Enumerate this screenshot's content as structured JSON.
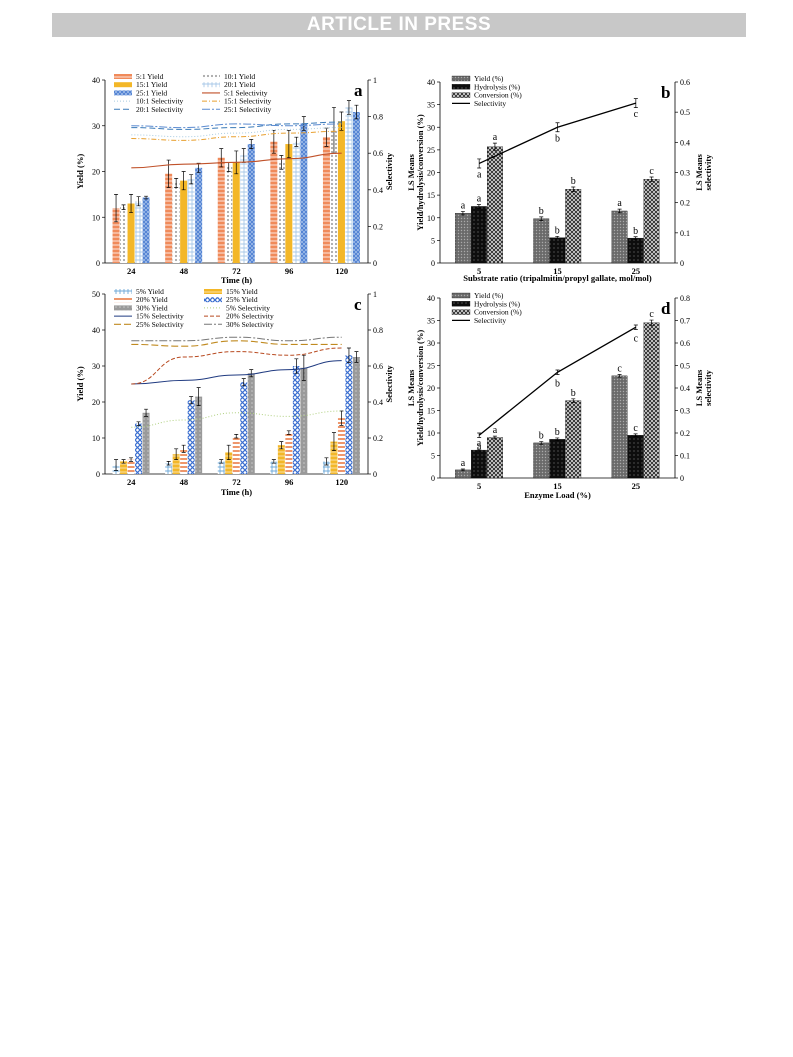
{
  "header": {
    "banner": "ARTICLE IN PRESS"
  },
  "colors": {
    "bar_5to1": "#f08a5a",
    "bar_10to1": "#c9c9c9",
    "bar_15to1": "#f3b728",
    "bar_20to1": "#a8c8e8",
    "bar_25to1": "#4f7fd2",
    "sel_5": "#c0522a",
    "sel_10": "#a8cbe0",
    "sel_15": "#e8a030",
    "sel_20": "#3a7ab8",
    "sel_25": "#5a8ad0"
  },
  "chart_data": [
    {
      "panel": "a",
      "type": "bar",
      "categories": [
        "24",
        "48",
        "72",
        "96",
        "120"
      ],
      "xlabel": "Time (h)",
      "ylabel": "Yield (%)",
      "ylabel2": "Selectivity",
      "ylim": [
        0,
        40
      ],
      "yticks": [
        "0",
        "10",
        "20",
        "30",
        "40"
      ],
      "y2lim": [
        0,
        1
      ],
      "y2ticks": [
        "0",
        "0.2",
        "0.4",
        "0.6",
        "0.8",
        "1"
      ],
      "series": [
        {
          "name": "5:1 Yield",
          "values": [
            12,
            19.5,
            23,
            26.5,
            27.5
          ],
          "errors": [
            3,
            3,
            2,
            2.5,
            2
          ]
        },
        {
          "name": "10:1 Yield",
          "values": [
            12.2,
            17.5,
            21,
            22,
            29
          ],
          "errors": [
            0.5,
            1,
            1,
            1.5,
            5
          ]
        },
        {
          "name": "15:1 Yield",
          "values": [
            13,
            18,
            22,
            26,
            31
          ],
          "errors": [
            2,
            2,
            2.5,
            3,
            2
          ]
        },
        {
          "name": "20:1 Yield",
          "values": [
            13.5,
            18.3,
            23.5,
            26.5,
            34
          ],
          "errors": [
            1,
            1,
            1.5,
            1,
            1.5
          ]
        },
        {
          "name": "25:1 Yield",
          "values": [
            14.3,
            20.8,
            26,
            30.5,
            33
          ],
          "errors": [
            0.3,
            1,
            1,
            1.5,
            1.5
          ]
        }
      ],
      "lines": [
        {
          "name": "5:1 Selectivity",
          "values": [
            0.52,
            0.54,
            0.55,
            0.57,
            0.6
          ]
        },
        {
          "name": "10:1 Selectivity",
          "values": [
            0.7,
            0.69,
            0.71,
            0.73,
            0.74
          ]
        },
        {
          "name": "15:1 Selectivity",
          "values": [
            0.68,
            0.67,
            0.69,
            0.71,
            0.72
          ]
        },
        {
          "name": "20:1 Selectivity",
          "values": [
            0.74,
            0.73,
            0.74,
            0.76,
            0.77
          ]
        },
        {
          "name": "25:1 Selectivity",
          "values": [
            0.75,
            0.74,
            0.76,
            0.75,
            0.76
          ]
        }
      ],
      "panel_label": "a"
    },
    {
      "panel": "b",
      "type": "bar",
      "categories": [
        "5",
        "15",
        "25"
      ],
      "xlabel": "Substrate ratio (tripalmitin/propyl gallate, mol/mol)",
      "ylabel": "LS Means",
      "ylabel_line2": "Yield/hydrolysis/conversion (%)",
      "ylabel2": "LS Means",
      "ylabel2_line2": "selectivity",
      "ylim": [
        0,
        40
      ],
      "yticks": [
        "0",
        "5",
        "10",
        "15",
        "20",
        "25",
        "30",
        "35",
        "40"
      ],
      "y2lim": [
        0,
        0.6
      ],
      "y2ticks": [
        "0",
        "0.1",
        "0.2",
        "0.3",
        "0.4",
        "0.5",
        "0.6"
      ],
      "series": [
        {
          "name": "Yield (%)",
          "values": [
            11,
            9.8,
            11.5
          ],
          "errors": [
            0.4,
            0.4,
            0.4
          ],
          "letters": [
            "a",
            "b",
            "a"
          ]
        },
        {
          "name": "Hydrolysis (%)",
          "values": [
            12.5,
            5.6,
            5.5
          ],
          "errors": [
            0.4,
            0.3,
            0.3
          ],
          "letters": [
            "a",
            "b",
            "b"
          ]
        },
        {
          "name": "Conversion (%)",
          "values": [
            25.7,
            16.3,
            18.5
          ],
          "errors": [
            0.8,
            0.5,
            0.5
          ],
          "letters": [
            "a",
            "b",
            "c"
          ]
        }
      ],
      "lines": [
        {
          "name": "Selectivity",
          "values": [
            0.33,
            0.45,
            0.53
          ],
          "errors": [
            0.015,
            0.015,
            0.015
          ],
          "letters": [
            "a",
            "b",
            "c"
          ]
        }
      ],
      "panel_label": "b"
    },
    {
      "panel": "c",
      "type": "bar",
      "categories": [
        "24",
        "48",
        "72",
        "96",
        "120"
      ],
      "xlabel": "Time (h)",
      "ylabel": "Yield (%)",
      "ylabel2": "Selectivity",
      "ylim": [
        0,
        50
      ],
      "yticks": [
        "0",
        "10",
        "20",
        "30",
        "40",
        "50"
      ],
      "y2lim": [
        0,
        1
      ],
      "y2ticks": [
        "0",
        "0.2",
        "0.4",
        "0.6",
        "0.8",
        "1"
      ],
      "series": [
        {
          "name": "5% Yield",
          "values": [
            2.5,
            3,
            3.5,
            3.5,
            3.5
          ],
          "errors": [
            1.5,
            0.5,
            0.5,
            0.5,
            1
          ]
        },
        {
          "name": "15% Yield",
          "values": [
            3.5,
            5.5,
            6,
            8,
            9
          ],
          "errors": [
            0.5,
            1.5,
            2,
            1,
            2.5
          ]
        },
        {
          "name": "20% Yield",
          "values": [
            4,
            7,
            10.5,
            11.5,
            15.5
          ],
          "errors": [
            0.5,
            1,
            0.5,
            0.5,
            2
          ]
        },
        {
          "name": "25% Yield",
          "values": [
            14,
            20.5,
            25.5,
            30,
            33
          ],
          "errors": [
            0.5,
            1,
            1,
            2,
            2
          ]
        },
        {
          "name": "30% Yield",
          "values": [
            17,
            21.5,
            28,
            29.5,
            32.5
          ],
          "errors": [
            1,
            2.5,
            1,
            3.5,
            1.5
          ]
        }
      ],
      "lines": [
        {
          "name": "5% Selectivity",
          "values": [
            0.26,
            0.3,
            0.34,
            0.32,
            0.35
          ]
        },
        {
          "name": "15% Selectivity",
          "values": [
            0.5,
            0.52,
            0.55,
            0.58,
            0.63
          ]
        },
        {
          "name": "20% Selectivity",
          "values": [
            0.5,
            0.65,
            0.68,
            0.66,
            0.7
          ]
        },
        {
          "name": "25% Selectivity",
          "values": [
            0.72,
            0.71,
            0.74,
            0.72,
            0.72
          ]
        },
        {
          "name": "30% Selectivity",
          "values": [
            0.74,
            0.74,
            0.76,
            0.74,
            0.76
          ]
        }
      ],
      "panel_label": "c"
    },
    {
      "panel": "d",
      "type": "bar",
      "categories": [
        "5",
        "15",
        "25"
      ],
      "xlabel": "Enzyme Load (%)",
      "ylabel": "LS Means",
      "ylabel_line2": "Yield/hydrolysis/conversion (%)",
      "ylabel2": "LS Means",
      "ylabel2_line2": "selectivity",
      "ylim": [
        0,
        40
      ],
      "yticks": [
        "0",
        "5",
        "10",
        "15",
        "20",
        "25",
        "30",
        "35",
        "40"
      ],
      "y2lim": [
        0,
        0.8
      ],
      "y2ticks": [
        "0",
        "0.1",
        "0.2",
        "0.3",
        "0.4",
        "0.5",
        "0.6",
        "0.7",
        "0.8"
      ],
      "series": [
        {
          "name": "Yield (%)",
          "values": [
            1.8,
            7.8,
            22.7
          ],
          "errors": [
            0.2,
            0.3,
            0.3
          ],
          "letters": [
            "a",
            "b",
            "c"
          ]
        },
        {
          "name": "Hydrolysis (%)",
          "values": [
            6.2,
            8.6,
            9.5
          ],
          "errors": [
            0.2,
            0.3,
            0.3
          ],
          "letters": [
            "a",
            "b",
            "c"
          ]
        },
        {
          "name": "Conversion (%)",
          "values": [
            9,
            17.2,
            34.5
          ],
          "errors": [
            0.3,
            0.4,
            0.6
          ],
          "letters": [
            "a",
            "b",
            "c"
          ]
        }
      ],
      "lines": [
        {
          "name": "Selectivity",
          "values": [
            0.19,
            0.47,
            0.67
          ],
          "errors": [
            0.01,
            0.01,
            0.01
          ],
          "letters": [
            "a",
            "b",
            "c"
          ]
        }
      ],
      "panel_label": "d"
    }
  ]
}
